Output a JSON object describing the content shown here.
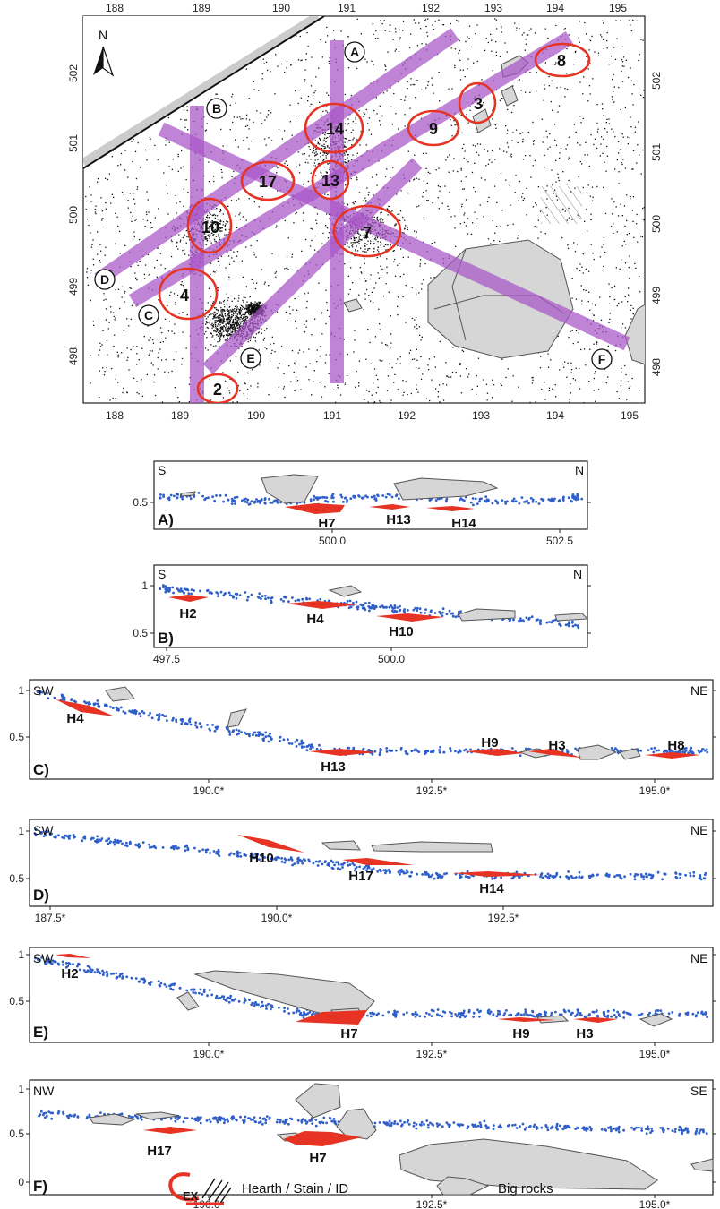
{
  "map": {
    "north_label": "N",
    "x_ticks": [
      "188",
      "189",
      "190",
      "191",
      "192",
      "193",
      "194",
      "195"
    ],
    "y_ticks": [
      "498",
      "499",
      "500",
      "501",
      "502"
    ],
    "profile_lines": [
      {
        "id": "A",
        "label": "A"
      },
      {
        "id": "B",
        "label": "B"
      },
      {
        "id": "C",
        "label": "C"
      },
      {
        "id": "D",
        "label": "D"
      },
      {
        "id": "E",
        "label": "E"
      },
      {
        "id": "F",
        "label": "F"
      }
    ],
    "hearths": [
      {
        "id": "2",
        "label": "2",
        "x": 189.45,
        "y": 497.95
      },
      {
        "id": "3",
        "label": "3",
        "x": 193.2,
        "y": 502.05
      },
      {
        "id": "4",
        "label": "4",
        "x": 189.0,
        "y": 499.2
      },
      {
        "id": "7",
        "label": "7",
        "x": 191.6,
        "y": 500.1
      },
      {
        "id": "8",
        "label": "8",
        "x": 194.4,
        "y": 502.7
      },
      {
        "id": "9",
        "label": "9",
        "x": 192.6,
        "y": 501.45
      },
      {
        "id": "10",
        "label": "10",
        "x": 189.3,
        "y": 500.2
      },
      {
        "id": "13",
        "label": "13",
        "x": 191.2,
        "y": 500.8
      },
      {
        "id": "14",
        "label": "14",
        "x": 191.3,
        "y": 501.55
      },
      {
        "id": "17",
        "label": "17",
        "x": 190.2,
        "y": 500.85
      }
    ],
    "colors": {
      "hearth": "#e63323",
      "profile_band": "#a855c8",
      "rock": "#d6d6d6",
      "points": "#000000"
    }
  },
  "profiles": [
    {
      "id": "A",
      "panel_label": "A)",
      "left_dir": "S",
      "right_dir": "N",
      "x_ticks": [
        "500.0",
        "502.5"
      ],
      "y_ticks": [
        "0.5"
      ],
      "hearths": [
        "H7",
        "H13",
        "H14"
      ]
    },
    {
      "id": "B",
      "panel_label": "B)",
      "left_dir": "S",
      "right_dir": "N",
      "x_ticks": [
        "497.5",
        "500.0"
      ],
      "y_ticks": [
        "1",
        "0.5"
      ],
      "hearths": [
        "H2",
        "H4",
        "H10"
      ]
    },
    {
      "id": "C",
      "panel_label": "C)",
      "left_dir": "SW",
      "right_dir": "NE",
      "x_ticks": [
        "190.0*",
        "192.5*",
        "195.0*"
      ],
      "y_ticks": [
        "1",
        "0.5"
      ],
      "hearths": [
        "H4",
        "H13",
        "H9",
        "H3",
        "H8"
      ]
    },
    {
      "id": "D",
      "panel_label": "D)",
      "left_dir": "SW",
      "right_dir": "NE",
      "x_ticks": [
        "187.5*",
        "190.0*",
        "192.5*"
      ],
      "y_ticks": [
        "1",
        "0.5"
      ],
      "hearths": [
        "H10",
        "H17",
        "H14"
      ]
    },
    {
      "id": "E",
      "panel_label": "E)",
      "left_dir": "SW",
      "right_dir": "NE",
      "x_ticks": [
        "190.0*",
        "192.5*",
        "195.0*"
      ],
      "y_ticks": [
        "1",
        "0.5"
      ],
      "hearths": [
        "H2",
        "H7",
        "H9",
        "H3"
      ]
    },
    {
      "id": "F",
      "panel_label": "F)",
      "left_dir": "NW",
      "right_dir": "SE",
      "x_ticks": [
        "190.0*",
        "192.5*",
        "195.0*"
      ],
      "y_ticks": [
        "1",
        "0.5",
        "0"
      ],
      "hearths": [
        "H17",
        "H7"
      ]
    }
  ],
  "legend": {
    "ex_label": "EX",
    "hearth_label": "Hearth / Stain / ID",
    "rocks_label": "Big rocks"
  }
}
